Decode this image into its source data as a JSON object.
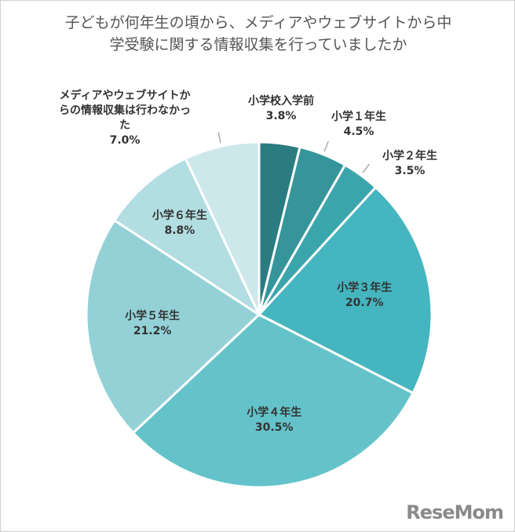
{
  "chart_data": {
    "type": "pie",
    "title": "子どもが何年生の頃から、メディアやウェブサイトから中学受験に関する情報収集を行っていましたか",
    "categories": [
      "小学校入学前",
      "小学１年生",
      "小学２年生",
      "小学３年生",
      "小学４年生",
      "小学５年生",
      "小学６年生",
      "メディアやウェブサイトからの情報収集は行わなかった"
    ],
    "values": [
      3.8,
      4.5,
      3.5,
      20.7,
      30.5,
      21.2,
      8.8,
      7.0
    ],
    "value_labels": [
      "3.8%",
      "4.5%",
      "3.5%",
      "20.7%",
      "30.5%",
      "21.2%",
      "8.8%",
      "7.0%"
    ],
    "colors": [
      "#2b7c81",
      "#35959b",
      "#3ba5ac",
      "#45b5bf",
      "#64c3ca",
      "#93d1d7",
      "#b2dde1",
      "#cde8eb"
    ]
  },
  "logo": "ReseMom"
}
